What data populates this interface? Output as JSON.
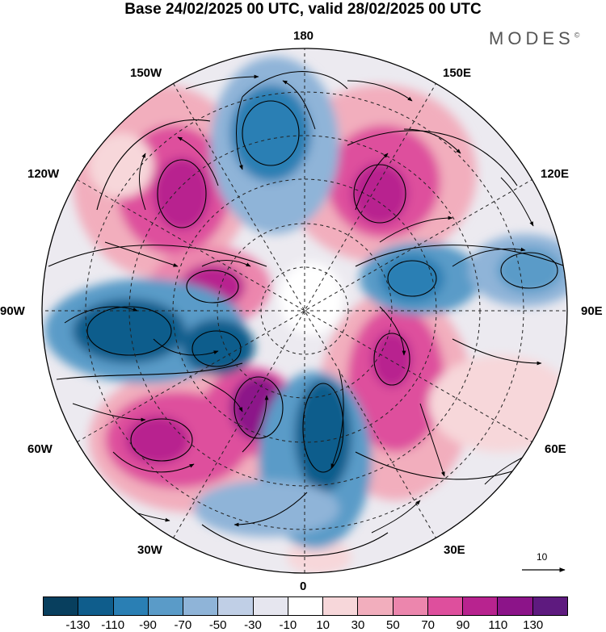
{
  "title": "Base 24/02/2025 00 UTC, valid 28/02/2025 00 UTC",
  "brand": "MODES",
  "brand_mark": "©",
  "longitude_labels": {
    "l180": "180",
    "l150W": "150W",
    "l150E": "150E",
    "l120W": "120W",
    "l120E": "120E",
    "l90W": "90W",
    "l90E": "90E",
    "l60W": "60W",
    "l60E": "60E",
    "l30W": "30W",
    "l30E": "30E",
    "l0": "0"
  },
  "reference_vector_label": "10",
  "colorbar": {
    "colors": [
      "#083f5e",
      "#0f5d8c",
      "#2a7fb4",
      "#5a9bc8",
      "#8fb4d8",
      "#c0cfe6",
      "#e6e6ef",
      "#ffffff",
      "#f7d7da",
      "#f2aebd",
      "#ec86ad",
      "#de4f9d",
      "#b8238f",
      "#8c1489",
      "#5e1a7f"
    ],
    "tick_labels": [
      "-130",
      "-110",
      "-90",
      "-70",
      "-50",
      "-30",
      "-10",
      "10",
      "30",
      "50",
      "70",
      "90",
      "110",
      "130"
    ]
  }
}
